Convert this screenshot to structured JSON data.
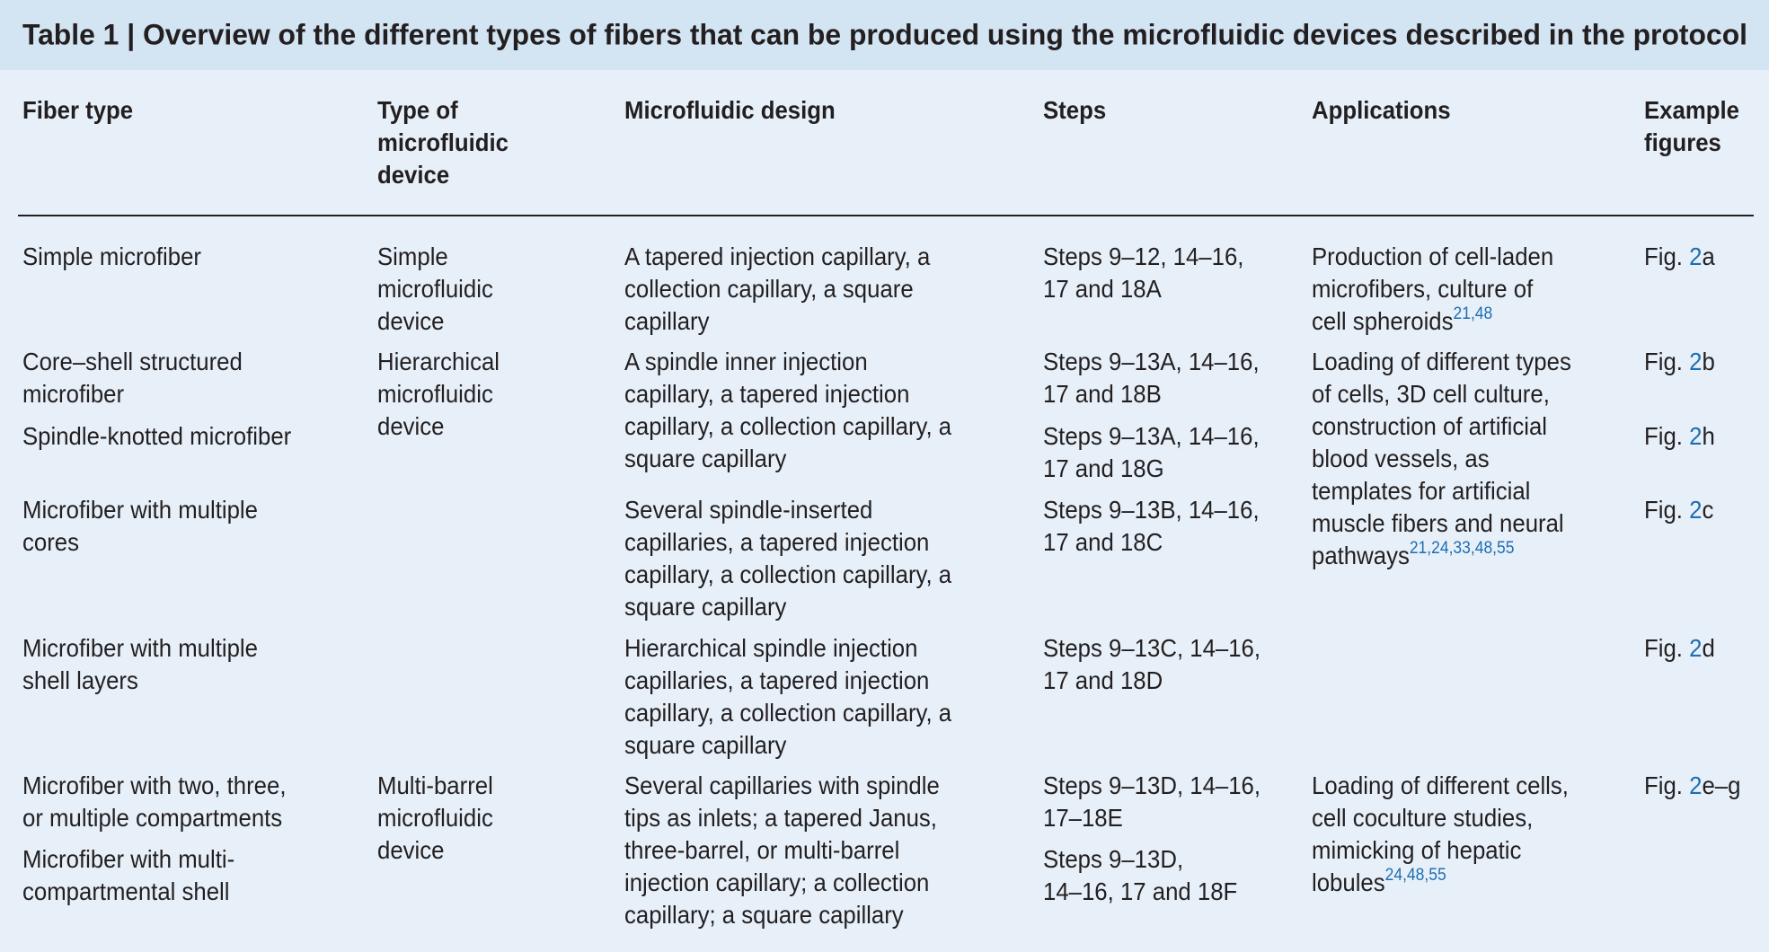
{
  "table": {
    "title": "Table 1 | Overview of the different types of fibers that can be produced using the microfluidic devices described in the protocol",
    "header": {
      "fiber_type": [
        "Fiber type"
      ],
      "device": [
        "Type of",
        "microfluidic",
        "device"
      ],
      "design": [
        "Microfluidic design"
      ],
      "steps": [
        "Steps"
      ],
      "applications": [
        "Applications"
      ],
      "figure": [
        "Example",
        "figures"
      ]
    },
    "rows": [
      {
        "fiber_type": [
          "Simple microfiber"
        ],
        "device": [
          "Simple",
          "microfluidic",
          "device"
        ],
        "design": [
          "A tapered injection capillary, a",
          "collection capillary, a square",
          "capillary"
        ],
        "steps": [
          "Steps 9–12, 14–16,",
          "17 and 18A"
        ],
        "applications": {
          "lines": [
            "Production of cell-laden",
            "microfibers, culture of",
            "cell spheroids"
          ],
          "refs": "21,48"
        },
        "figure": {
          "prefix": "Fig.",
          "ref": "2",
          "suffix": "a"
        }
      },
      {
        "fiber_type": [
          "Core–shell structured",
          "microfiber"
        ],
        "device": [
          "Hierarchical",
          "microfluidic",
          "device"
        ],
        "design": [
          "A spindle inner injection",
          "capillary, a tapered injection",
          "capillary, a collection capillary, a",
          "square capillary"
        ],
        "steps": [
          "Steps 9–13A, 14–16,",
          "17 and 18B"
        ],
        "applications": {
          "lines": [
            "Loading of different types",
            "of cells, 3D cell culture,",
            "construction of artificial",
            "blood vessels, as",
            "templates for artificial",
            "muscle fibers and neural",
            "pathways"
          ],
          "refs": "21,24,33,48,55"
        },
        "figure": {
          "prefix": "Fig.",
          "ref": "2",
          "suffix": "b"
        }
      },
      {
        "fiber_type": [
          "Spindle-knotted microfiber"
        ],
        "steps": [
          "Steps 9–13A, 14–16,",
          "17 and 18G"
        ],
        "figure": {
          "prefix": "Fig.",
          "ref": "2",
          "suffix": "h"
        }
      },
      {
        "fiber_type": [
          "Microfiber with multiple",
          "cores"
        ],
        "design": [
          "Several spindle-inserted",
          "capillaries, a tapered injection",
          "capillary, a collection capillary, a",
          "square capillary"
        ],
        "steps": [
          "Steps 9–13B, 14–16,",
          "17 and 18C"
        ],
        "figure": {
          "prefix": "Fig.",
          "ref": "2",
          "suffix": "c"
        }
      },
      {
        "fiber_type": [
          "Microfiber with multiple",
          "shell layers"
        ],
        "design": [
          "Hierarchical spindle injection",
          "capillaries, a tapered injection",
          "capillary, a collection capillary, a",
          "square capillary"
        ],
        "steps": [
          "Steps 9–13C, 14–16,",
          "17 and 18D"
        ],
        "figure": {
          "prefix": "Fig.",
          "ref": "2",
          "suffix": "d"
        }
      },
      {
        "fiber_type": [
          "Microfiber with two, three,",
          "or multiple compartments"
        ],
        "device": [
          "Multi-barrel",
          "microfluidic",
          "device"
        ],
        "design": [
          "Several capillaries with spindle",
          "tips as inlets; a tapered Janus,",
          "three-barrel, or multi-barrel",
          "injection capillary; a collection",
          "capillary; a square capillary"
        ],
        "steps": [
          "Steps 9–13D, 14–16,",
          "17–18E"
        ],
        "applications": {
          "lines": [
            "Loading of different cells,",
            "cell coculture studies,",
            "mimicking of hepatic",
            "lobules"
          ],
          "refs": "24,48,55"
        },
        "figure": {
          "prefix": "Fig.",
          "ref": "2",
          "suffix": "e–g"
        }
      },
      {
        "fiber_type": [
          "Microfiber with multi-",
          "compartmental shell"
        ],
        "steps": [
          "Steps 9–13D,",
          "14–16, 17 and 18F"
        ]
      }
    ]
  }
}
